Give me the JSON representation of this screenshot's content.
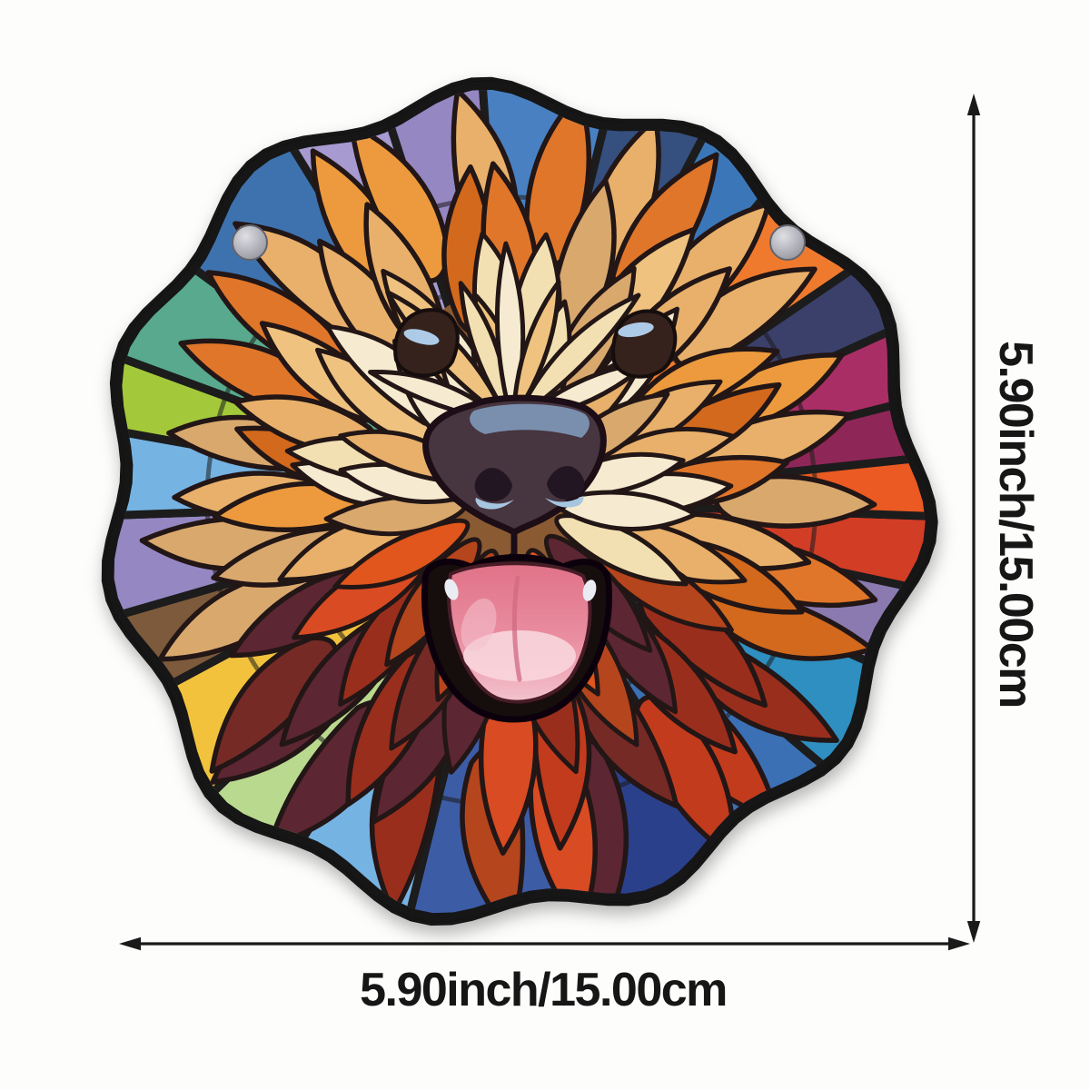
{
  "annotations": {
    "width_label": "5.90inch/15.00cm",
    "height_label": "5.90inch/15.00cm"
  },
  "artwork": {
    "subject": "stained-glass style goldendoodle dog face suncatcher with two mounting holes",
    "palette": {
      "background": "#fdfdfb",
      "outline": "#121212",
      "lead_line": "#241612",
      "mosaic_lead": "#1b1b1b",
      "dimension_line": "#1a1a1a",
      "fur_warm": [
        "#f6ead0",
        "#f3e0b2",
        "#efc27f",
        "#e8b06a",
        "#d9a86d",
        "#ec9a3e",
        "#e0762b",
        "#c8833f",
        "#d2691e"
      ],
      "fur_dark": [
        "#c23b1f",
        "#9a2f1c",
        "#742c28",
        "#e0571f",
        "#d94b24",
        "#5c2733",
        "#b5441e"
      ],
      "eye_patch": "#34201a",
      "eye_highlight": "#adcbe6",
      "nose": "#46343f",
      "nose_sheen": "#7e97b6",
      "nostril": "#241721",
      "nostril_highlight": "#a6c6e0",
      "mouth": "#150d10",
      "tongue": "#e07288",
      "tongue_highlight": "#f8d6dc",
      "tooth_glint": "#e9edf3",
      "hole_fill": "#9b9ba3",
      "hole_rim": "#63636d"
    },
    "mosaic_segments": [
      {
        "a0": 2,
        "a1": 12,
        "c": "#d23c28"
      },
      {
        "a0": 12,
        "a1": 24,
        "c": "#8a7ab0"
      },
      {
        "a0": 24,
        "a1": 40,
        "c": "#2e8fc0"
      },
      {
        "a0": 40,
        "a1": 58,
        "c": "#3b6fb5"
      },
      {
        "a0": 58,
        "a1": 78,
        "c": "#2c3f8a"
      },
      {
        "a0": 78,
        "a1": 104,
        "c": "#3d5ca6"
      },
      {
        "a0": 104,
        "a1": 122,
        "c": "#74b3e3"
      },
      {
        "a0": 122,
        "a1": 136,
        "c": "#b9d98f"
      },
      {
        "a0": 136,
        "a1": 152,
        "c": "#f2c23e"
      },
      {
        "a0": 152,
        "a1": 164,
        "c": "#7b5a3a"
      },
      {
        "a0": 164,
        "a1": 178,
        "c": "#9587c2"
      },
      {
        "a0": 178,
        "a1": 190,
        "c": "#74b3e3"
      },
      {
        "a0": 190,
        "a1": 200,
        "c": "#a3c93a"
      },
      {
        "a0": 200,
        "a1": 216,
        "c": "#58a98e"
      },
      {
        "a0": 216,
        "a1": 238,
        "c": "#3d72ae"
      },
      {
        "a0": 238,
        "a1": 252,
        "c": "#a79ad1"
      },
      {
        "a0": 252,
        "a1": 266,
        "c": "#9587c2"
      },
      {
        "a0": 266,
        "a1": 284,
        "c": "#4a80c2"
      },
      {
        "a0": 284,
        "a1": 298,
        "c": "#35507e"
      },
      {
        "a0": 298,
        "a1": 310,
        "c": "#3a77b8"
      },
      {
        "a0": 310,
        "a1": 326,
        "c": "#ef7a2e"
      },
      {
        "a0": 326,
        "a1": 336,
        "c": "#3a3f6b"
      },
      {
        "a0": 336,
        "a1": 346,
        "c": "#aa2f66"
      },
      {
        "a0": 346,
        "a1": 354,
        "c": "#8f2658"
      },
      {
        "a0": 354,
        "a1": 362,
        "c": "#ea5a20"
      }
    ]
  }
}
